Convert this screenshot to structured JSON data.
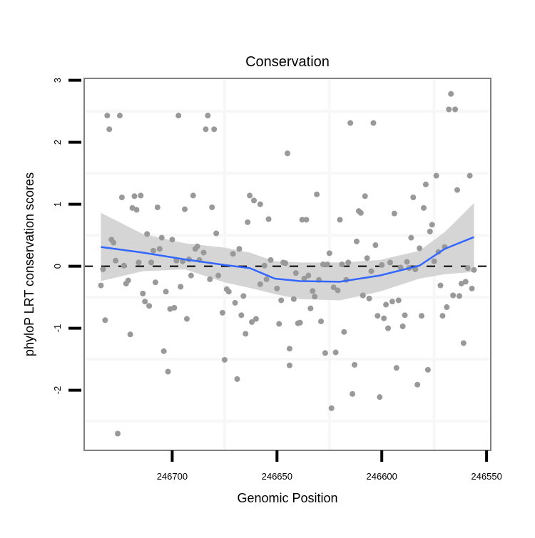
{
  "chart_data": {
    "type": "scatter",
    "title": "Conservation",
    "xlabel": "Genomic Position",
    "ylabel": "phyloP LRT conservation scores",
    "x_reversed": true,
    "xlim": [
      246742,
      246548
    ],
    "ylim": [
      -2.97,
      3.03
    ],
    "x_ticks": [
      246700,
      246650,
      246600,
      246550
    ],
    "x_tick_labels": [
      "246700",
      "246650",
      "246600",
      "246550"
    ],
    "y_ticks": [
      3,
      2,
      1,
      0,
      -1,
      -2
    ],
    "y_tick_labels": [
      "3",
      "2",
      "1",
      "0",
      "-1",
      "-2"
    ],
    "grid": true,
    "reference_line": {
      "y": 0,
      "style": "dashed",
      "color": "#000000"
    },
    "colors": {
      "points": "#999999",
      "smooth": "#3366FF",
      "band": "#d3d3d3",
      "border": "#808080",
      "grid": "#f7f7f7"
    },
    "points": [
      [
        246731,
        2.43
      ],
      [
        246725,
        2.43
      ],
      [
        246730,
        2.21
      ],
      [
        246697,
        2.43
      ],
      [
        246683,
        2.43
      ],
      [
        246684,
        2.21
      ],
      [
        246680,
        2.21
      ],
      [
        246645,
        1.82
      ],
      [
        246724,
        1.11
      ],
      [
        246718,
        1.13
      ],
      [
        246715,
        1.14
      ],
      [
        246719,
        0.94
      ],
      [
        246717,
        0.91
      ],
      [
        246707,
        0.95
      ],
      [
        246694,
        0.92
      ],
      [
        246690,
        1.14
      ],
      [
        246681,
        0.95
      ],
      [
        246663,
        1.14
      ],
      [
        246661,
        1.06
      ],
      [
        246658,
        1.0
      ],
      [
        246664,
        0.71
      ],
      [
        246654,
        0.76
      ],
      [
        246712,
        0.52
      ],
      [
        246679,
        0.53
      ],
      [
        246705,
        0.46
      ],
      [
        246700,
        0.43
      ],
      [
        246729,
        0.43
      ],
      [
        246728,
        0.38
      ],
      [
        246709,
        0.25
      ],
      [
        246706,
        0.28
      ],
      [
        246688,
        0.32
      ],
      [
        246689,
        0.28
      ],
      [
        246685,
        0.22
      ],
      [
        246671,
        0.2
      ],
      [
        246668,
        0.28
      ],
      [
        246727,
        0.09
      ],
      [
        246716,
        0.06
      ],
      [
        246710,
        0.06
      ],
      [
        246698,
        0.09
      ],
      [
        246695,
        0.08
      ],
      [
        246692,
        0.11
      ],
      [
        246687,
        0.1
      ],
      [
        246653,
        0.1
      ],
      [
        246647,
        0.06
      ],
      [
        246733,
        -0.05
      ],
      [
        246723,
        0.01
      ],
      [
        246656,
        0.01
      ],
      [
        246646,
        0.05
      ],
      [
        246734,
        -0.31
      ],
      [
        246721,
        -0.23
      ],
      [
        246722,
        -0.28
      ],
      [
        246708,
        -0.26
      ],
      [
        246691,
        -0.15
      ],
      [
        246682,
        -0.21
      ],
      [
        246678,
        -0.15
      ],
      [
        246696,
        -0.33
      ],
      [
        246703,
        -0.41
      ],
      [
        246714,
        -0.44
      ],
      [
        246713,
        -0.57
      ],
      [
        246711,
        -0.64
      ],
      [
        246701,
        -0.69
      ],
      [
        246699,
        -0.67
      ],
      [
        246674,
        -0.37
      ],
      [
        246673,
        -0.41
      ],
      [
        246670,
        -0.59
      ],
      [
        246666,
        -0.48
      ],
      [
        246658,
        -0.29
      ],
      [
        246655,
        -0.21
      ],
      [
        246650,
        -0.36
      ],
      [
        246648,
        -0.55
      ],
      [
        246732,
        -0.87
      ],
      [
        246693,
        -0.85
      ],
      [
        246676,
        -0.75
      ],
      [
        246667,
        -0.79
      ],
      [
        246662,
        -0.9
      ],
      [
        246660,
        -0.85
      ],
      [
        246649,
        -0.93
      ],
      [
        246720,
        -1.1
      ],
      [
        246665,
        -1.09
      ],
      [
        246704,
        -1.37
      ],
      [
        246675,
        -1.51
      ],
      [
        246644,
        -1.33
      ],
      [
        246702,
        -1.7
      ],
      [
        246669,
        -1.82
      ],
      [
        246644,
        -1.6
      ],
      [
        246726,
        -2.7
      ],
      [
        246567,
        2.78
      ],
      [
        246568,
        2.53
      ],
      [
        246565,
        2.53
      ],
      [
        246615,
        2.31
      ],
      [
        246604,
        2.31
      ],
      [
        246631,
        1.16
      ],
      [
        246638,
        0.75
      ],
      [
        246636,
        0.75
      ],
      [
        246620,
        0.75
      ],
      [
        246608,
        1.13
      ],
      [
        246611,
        0.89
      ],
      [
        246610,
        0.86
      ],
      [
        246594,
        0.85
      ],
      [
        246585,
        1.11
      ],
      [
        246579,
        1.32
      ],
      [
        246574,
        1.46
      ],
      [
        246558,
        1.46
      ],
      [
        246564,
        1.23
      ],
      [
        246580,
        0.94
      ],
      [
        246576,
        0.67
      ],
      [
        246577,
        0.56
      ],
      [
        246586,
        0.46
      ],
      [
        246612,
        0.4
      ],
      [
        246603,
        0.34
      ],
      [
        246625,
        0.21
      ],
      [
        246582,
        0.29
      ],
      [
        246570,
        0.31
      ],
      [
        246573,
        0.23
      ],
      [
        246607,
        0.13
      ],
      [
        246575,
        0.08
      ],
      [
        246628,
        0.03
      ],
      [
        246626,
        0.03
      ],
      [
        246619,
        0.03
      ],
      [
        246616,
        0.06
      ],
      [
        246600,
        0.02
      ],
      [
        246596,
        0.06
      ],
      [
        246588,
        0.07
      ],
      [
        246591,
        -0.02
      ],
      [
        246587,
        -0.03
      ],
      [
        246584,
        -0.05
      ],
      [
        246559,
        -0.03
      ],
      [
        246556,
        -0.06
      ],
      [
        246605,
        -0.08
      ],
      [
        246641,
        -0.11
      ],
      [
        246637,
        -0.2
      ],
      [
        246635,
        -0.15
      ],
      [
        246630,
        -0.22
      ],
      [
        246617,
        -0.22
      ],
      [
        246623,
        -0.34
      ],
      [
        246621,
        -0.39
      ],
      [
        246633,
        -0.4
      ],
      [
        246632,
        -0.49
      ],
      [
        246642,
        -0.53
      ],
      [
        246609,
        -0.47
      ],
      [
        246606,
        -0.52
      ],
      [
        246572,
        -0.31
      ],
      [
        246562,
        -0.28
      ],
      [
        246560,
        -0.25
      ],
      [
        246557,
        -0.36
      ],
      [
        246566,
        -0.47
      ],
      [
        246563,
        -0.48
      ],
      [
        246598,
        -0.62
      ],
      [
        246595,
        -0.57
      ],
      [
        246592,
        -0.55
      ],
      [
        246634,
        -0.68
      ],
      [
        246602,
        -0.8
      ],
      [
        246599,
        -0.84
      ],
      [
        246589,
        -0.79
      ],
      [
        246581,
        -0.8
      ],
      [
        246571,
        -0.8
      ],
      [
        246569,
        -0.66
      ],
      [
        246640,
        -0.92
      ],
      [
        246639,
        -0.91
      ],
      [
        246629,
        -0.89
      ],
      [
        246597,
        -1.0
      ],
      [
        246590,
        -0.97
      ],
      [
        246618,
        -1.06
      ],
      [
        246627,
        -1.4
      ],
      [
        246622,
        -1.39
      ],
      [
        246561,
        -1.24
      ],
      [
        246613,
        -1.59
      ],
      [
        246593,
        -1.64
      ],
      [
        246578,
        -1.67
      ],
      [
        246583,
        -1.91
      ],
      [
        246614,
        -2.06
      ],
      [
        246601,
        -2.11
      ],
      [
        246624,
        -2.29
      ]
    ],
    "smooth": {
      "x": [
        246734,
        246714,
        246694,
        246675,
        246663,
        246651,
        246639,
        246620,
        246601,
        246582,
        246570,
        246556
      ],
      "y": [
        0.31,
        0.22,
        0.11,
        0.02,
        -0.03,
        -0.2,
        -0.24,
        -0.25,
        -0.15,
        0.01,
        0.28,
        0.47
      ],
      "lo": [
        -0.24,
        -0.08,
        -0.05,
        -0.26,
        -0.35,
        -0.45,
        -0.53,
        -0.55,
        -0.41,
        -0.2,
        -0.13,
        -0.09
      ],
      "hi": [
        0.86,
        0.52,
        0.37,
        0.3,
        0.22,
        0.08,
        0.06,
        0.06,
        0.1,
        0.25,
        0.55,
        1.02
      ]
    }
  }
}
